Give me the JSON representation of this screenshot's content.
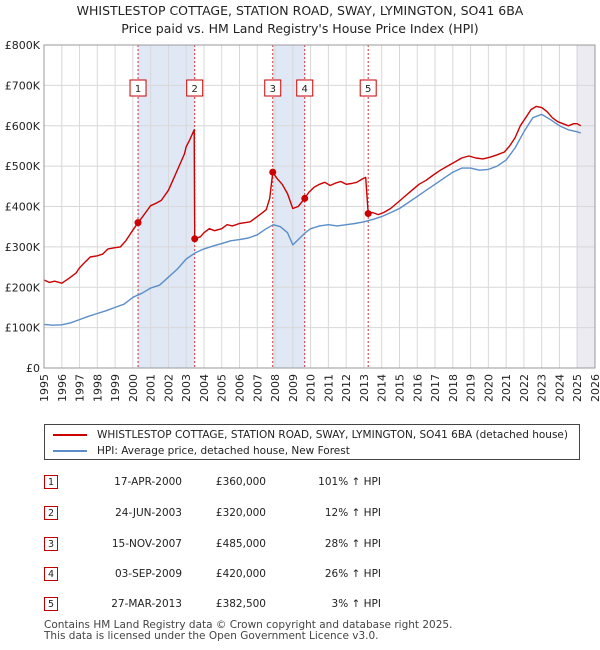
{
  "chart_data": {
    "type": "line",
    "title": "WHISTLESTOP COTTAGE, STATION ROAD, SWAY, LYMINGTON, SO41 6BA",
    "subtitle": "Price paid vs. HM Land Registry's House Price Index (HPI)",
    "xlim": [
      1995,
      2026
    ],
    "ylim": [
      0,
      800000
    ],
    "x_ticks": [
      "1995",
      "1996",
      "1997",
      "1998",
      "1999",
      "2000",
      "2001",
      "2002",
      "2003",
      "2004",
      "2005",
      "2006",
      "2007",
      "2008",
      "2009",
      "2010",
      "2011",
      "2012",
      "2013",
      "2014",
      "2015",
      "2016",
      "2017",
      "2018",
      "2019",
      "2020",
      "2021",
      "2022",
      "2023",
      "2024",
      "2025",
      "2026"
    ],
    "y_ticks": [
      {
        "value": 0,
        "label": "£0"
      },
      {
        "value": 100000,
        "label": "£100K"
      },
      {
        "value": 200000,
        "label": "£200K"
      },
      {
        "value": 300000,
        "label": "£300K"
      },
      {
        "value": 400000,
        "label": "£400K"
      },
      {
        "value": 500000,
        "label": "£500K"
      },
      {
        "value": 600000,
        "label": "£600K"
      },
      {
        "value": 700000,
        "label": "£700K"
      },
      {
        "value": 800000,
        "label": "£800K"
      }
    ],
    "grid": true,
    "series": [
      {
        "name": "WHISTLESTOP COTTAGE, STATION ROAD, SWAY, LYMINGTON, SO41 6BA (detached house)",
        "color": "#cc0000",
        "x": [
          1995.0,
          1995.3,
          1995.6,
          1996.0,
          1996.4,
          1996.8,
          1997.0,
          1997.3,
          1997.6,
          1998.0,
          1998.3,
          1998.6,
          1999.0,
          1999.3,
          1999.6,
          1999.9,
          2000.29,
          2000.5,
          2000.8,
          2001.0,
          2001.3,
          2001.6,
          2002.0,
          2002.3,
          2002.6,
          2002.9,
          2003.0,
          2003.2,
          2003.45,
          2003.48,
          2003.8,
          2004.0,
          2004.3,
          2004.6,
          2005.0,
          2005.3,
          2005.6,
          2006.0,
          2006.3,
          2006.6,
          2007.0,
          2007.3,
          2007.5,
          2007.7,
          2007.87,
          2008.1,
          2008.4,
          2008.7,
          2009.0,
          2009.3,
          2009.67,
          2009.9,
          2010.2,
          2010.5,
          2010.8,
          2011.1,
          2011.4,
          2011.7,
          2012.0,
          2012.3,
          2012.6,
          2012.9,
          2013.1,
          2013.24,
          2013.5,
          2013.8,
          2014.1,
          2014.5,
          2014.9,
          2015.3,
          2015.7,
          2016.1,
          2016.5,
          2016.9,
          2017.3,
          2017.7,
          2018.1,
          2018.5,
          2018.9,
          2019.3,
          2019.7,
          2020.1,
          2020.5,
          2020.9,
          2021.2,
          2021.5,
          2021.8,
          2022.1,
          2022.4,
          2022.7,
          2023.0,
          2023.3,
          2023.6,
          2023.9,
          2024.2,
          2024.5,
          2024.8,
          2025.0,
          2025.2
        ],
        "y": [
          218000,
          212000,
          215000,
          210000,
          222000,
          235000,
          248000,
          262000,
          275000,
          278000,
          282000,
          295000,
          298000,
          300000,
          315000,
          335000,
          360000,
          372000,
          390000,
          402000,
          408000,
          415000,
          440000,
          470000,
          500000,
          530000,
          548000,
          565000,
          590000,
          320000,
          325000,
          335000,
          345000,
          340000,
          345000,
          355000,
          352000,
          358000,
          360000,
          362000,
          375000,
          385000,
          392000,
          420000,
          485000,
          470000,
          455000,
          432000,
          395000,
          400000,
          420000,
          435000,
          448000,
          455000,
          460000,
          452000,
          458000,
          462000,
          455000,
          457000,
          460000,
          468000,
          472000,
          382500,
          385000,
          380000,
          385000,
          395000,
          410000,
          425000,
          440000,
          455000,
          465000,
          478000,
          490000,
          500000,
          510000,
          520000,
          525000,
          520000,
          518000,
          522000,
          528000,
          535000,
          550000,
          570000,
          600000,
          620000,
          640000,
          648000,
          645000,
          635000,
          620000,
          610000,
          605000,
          600000,
          605000,
          605000,
          600000
        ]
      },
      {
        "name": "HPI: Average price, detached house, New Forest",
        "color": "#5b8ec9",
        "x": [
          1995.0,
          1995.5,
          1996.0,
          1996.5,
          1997.0,
          1997.5,
          1998.0,
          1998.5,
          1999.0,
          1999.5,
          2000.0,
          2000.5,
          2001.0,
          2001.5,
          2002.0,
          2002.5,
          2003.0,
          2003.5,
          2004.0,
          2004.5,
          2005.0,
          2005.5,
          2006.0,
          2006.5,
          2007.0,
          2007.5,
          2007.9,
          2008.3,
          2008.7,
          2009.0,
          2009.3,
          2009.7,
          2010.0,
          2010.5,
          2011.0,
          2011.5,
          2012.0,
          2012.5,
          2013.0,
          2013.5,
          2014.0,
          2014.5,
          2015.0,
          2015.5,
          2016.0,
          2016.5,
          2017.0,
          2017.5,
          2018.0,
          2018.5,
          2019.0,
          2019.5,
          2020.0,
          2020.5,
          2021.0,
          2021.5,
          2022.0,
          2022.5,
          2023.0,
          2023.5,
          2024.0,
          2024.5,
          2025.0,
          2025.2
        ],
        "y": [
          108000,
          106000,
          107000,
          112000,
          120000,
          128000,
          135000,
          142000,
          150000,
          158000,
          175000,
          185000,
          198000,
          205000,
          225000,
          245000,
          270000,
          285000,
          295000,
          302000,
          308000,
          315000,
          318000,
          322000,
          330000,
          345000,
          355000,
          350000,
          335000,
          305000,
          318000,
          335000,
          345000,
          352000,
          355000,
          352000,
          355000,
          358000,
          362000,
          368000,
          375000,
          385000,
          395000,
          410000,
          425000,
          440000,
          455000,
          470000,
          485000,
          495000,
          495000,
          490000,
          492000,
          500000,
          515000,
          545000,
          585000,
          620000,
          628000,
          615000,
          600000,
          590000,
          585000,
          582000
        ]
      }
    ],
    "markers": [
      {
        "label": "1",
        "x": 2000.29,
        "y": 360000
      },
      {
        "label": "2",
        "x": 2003.48,
        "y": 320000
      },
      {
        "label": "3",
        "x": 2007.87,
        "y": 485000
      },
      {
        "label": "4",
        "x": 2009.67,
        "y": 420000
      },
      {
        "label": "5",
        "x": 2013.24,
        "y": 382500
      }
    ],
    "shaded_ranges": [
      {
        "from": 2000.29,
        "to": 2003.48
      },
      {
        "from": 2007.87,
        "to": 2009.67
      },
      {
        "from": 2024.95,
        "to": 2026.0
      }
    ]
  },
  "legend": {
    "red_label": "WHISTLESTOP COTTAGE, STATION ROAD, SWAY, LYMINGTON, SO41 6BA (detached house)",
    "blue_label": "HPI: Average price, detached house, New Forest"
  },
  "transactions": [
    {
      "num": "1",
      "date": "17-APR-2000",
      "price": "£360,000",
      "hpi": "101% ↑ HPI"
    },
    {
      "num": "2",
      "date": "24-JUN-2003",
      "price": "£320,000",
      "hpi": "12% ↑ HPI"
    },
    {
      "num": "3",
      "date": "15-NOV-2007",
      "price": "£485,000",
      "hpi": "28% ↑ HPI"
    },
    {
      "num": "4",
      "date": "03-SEP-2009",
      "price": "£420,000",
      "hpi": "26% ↑ HPI"
    },
    {
      "num": "5",
      "date": "27-MAR-2013",
      "price": "£382,500",
      "hpi": "3% ↑ HPI"
    }
  ],
  "footer": {
    "line1": "Contains HM Land Registry data © Crown copyright and database right 2025.",
    "line2": "This data is licensed under the Open Government Licence v3.0."
  },
  "colors": {
    "red": "#cc0000",
    "blue": "#5b8ec9",
    "shade": "#dde6f5"
  }
}
